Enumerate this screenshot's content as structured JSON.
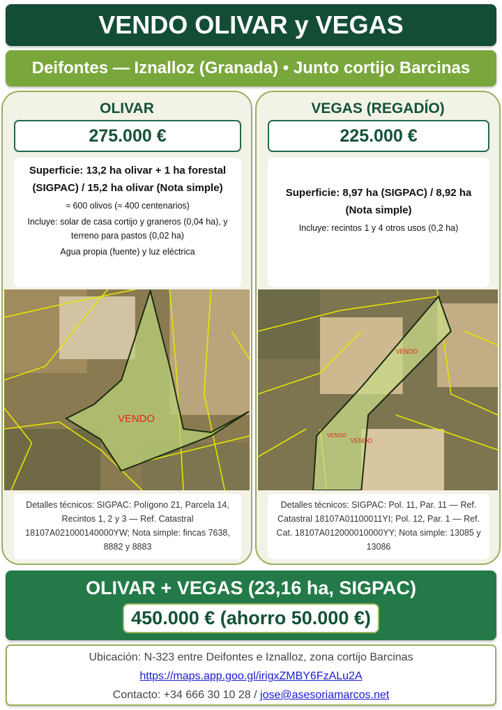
{
  "header": {
    "title": "VENDO OLIVAR y VEGAS",
    "subtitle": "Deifontes — Iznalloz (Granada) • Junto cortijo Barcinas"
  },
  "olivar": {
    "heading": "OLIVAR",
    "price": "275.000 €",
    "surface": "Superficie: 13,2 ha olivar + 1 ha forestal (SIGPAC) / 15,2 ha olivar (Nota simple)",
    "lines": [
      "≈ 600 olivos (≈ 400 centenarios)",
      "Incluye: solar de casa cortijo y graneros (0,04 ha), y terreno para pastos (0,02 ha)",
      "Agua propia (fuente) y luz eléctrica"
    ],
    "map_label": "VENDO",
    "details": "Detalles técnicos: SIGPAC: Polígono 21, Parcela 14, Recintos 1, 2 y 3 — Ref. Catastral 18107A021000140000YW; Nota simple: fincas 7638, 8882 y 8883"
  },
  "vegas": {
    "heading": "VEGAS (REGADÍO)",
    "price": "225.000 €",
    "surface": "Superficie: 8,97 ha (SIGPAC) / 8,92 ha (Nota simple)",
    "lines": [
      "Incluye: recintos 1 y 4 otros usos (0,2 ha)"
    ],
    "map_labels": [
      "VENDO",
      "VENDO",
      "VENDO"
    ],
    "details": "Detalles técnicos: SIGPAC: Pol. 11, Par. 11 — Ref. Catastral 18107A01100011YI; Pol. 12, Par. 1 — Ref. Cat. 18107A012000010000YY; Nota simple: 13085 y 13086"
  },
  "combo": {
    "title": "OLIVAR + VEGAS (23,16 ha, SIGPAC)",
    "price": "450.000 € (ahorro 50.000 €)"
  },
  "footer": {
    "location": "Ubicación: N-323 entre Deifontes e Iznalloz, zona cortijo Barcinas",
    "map_link": "https://maps.app.goo.gl/irigxZMBY6FzALu2A",
    "contact_prefix": "Contacto: +34 666 30 10 28 / ",
    "email": "jose@asesoriamarcos.net"
  },
  "colors": {
    "dark_green": "#134d36",
    "olive_green": "#7aa73c",
    "combo_green": "#237a48",
    "vendo_red": "#e0261c",
    "parcel_line": "#e6e600"
  }
}
